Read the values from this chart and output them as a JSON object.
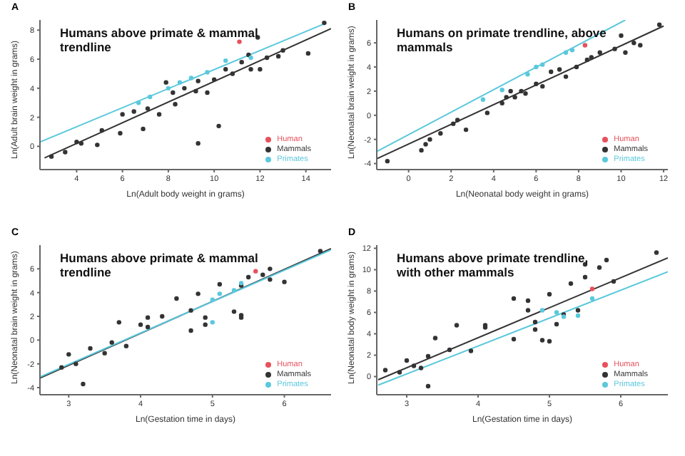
{
  "chart_data": [
    {
      "type": "scatter",
      "title": "A",
      "xlabel": "Ln(Adult body weight in grams)",
      "ylabel": "Ln(Adult brain weight in grams)",
      "annotations": [
        "Humans above primate & mammal trendline"
      ],
      "xlim": [
        2.4,
        15.1
      ],
      "ylim": [
        -1.6,
        8.7
      ],
      "xticks": [
        4,
        6,
        8,
        10,
        12,
        14
      ],
      "yticks": [
        0,
        2,
        4,
        6,
        8
      ],
      "grid": false,
      "legend": "bottom right",
      "marker": "circle",
      "series": [
        {
          "name": "Mammals",
          "color": "#333333",
          "x": [
            2.9,
            3.5,
            4.0,
            4.2,
            4.9,
            5.1,
            5.9,
            6.0,
            6.5,
            6.9,
            7.1,
            7.6,
            7.9,
            8.2,
            8.3,
            8.7,
            9.2,
            9.3,
            9.7,
            10.0,
            10.2,
            9.3,
            10.5,
            10.8,
            11.2,
            11.5,
            11.6,
            12.0,
            12.3,
            12.8,
            13.0,
            14.1,
            11.9,
            14.8
          ],
          "values": [
            -0.7,
            -0.4,
            0.3,
            0.2,
            0.1,
            1.1,
            0.9,
            2.2,
            2.4,
            1.2,
            2.6,
            2.2,
            4.4,
            3.7,
            2.9,
            4.0,
            3.8,
            4.5,
            3.7,
            4.6,
            1.4,
            0.2,
            5.3,
            5.0,
            5.8,
            6.3,
            5.3,
            5.3,
            6.1,
            6.2,
            6.6,
            6.4,
            7.5,
            8.5
          ]
        },
        {
          "name": "Primates",
          "color": "#5bc8dc",
          "x": [
            6.7,
            7.2,
            8.0,
            8.5,
            9.0,
            9.7,
            10.5,
            11.6
          ],
          "values": [
            3.0,
            3.4,
            4.0,
            4.4,
            4.7,
            5.1,
            5.9,
            6.1
          ]
        },
        {
          "name": "Human",
          "color": "#e8505b",
          "x": [
            11.1
          ],
          "values": [
            7.2
          ]
        },
        {
          "type": "line",
          "color": "#333333",
          "marker": "none",
          "x": [
            2.6,
            15.1
          ],
          "values": [
            -0.8,
            8.1
          ]
        },
        {
          "type": "line",
          "color": "#5bc8dc",
          "marker": "none",
          "x": [
            2.4,
            14.9
          ],
          "values": [
            0.3,
            8.5
          ]
        }
      ]
    },
    {
      "type": "scatter",
      "title": "B",
      "xlabel": "Ln(Neonatal body weight in grams)",
      "ylabel": "Ln(Neonatal brain weight in grams)",
      "annotations": [
        "Humans on primate trendline, above mammals"
      ],
      "xlim": [
        -1.5,
        12.2
      ],
      "ylim": [
        -4.5,
        7.9
      ],
      "xticks": [
        0,
        2,
        4,
        6,
        8,
        10,
        12
      ],
      "yticks": [
        -4,
        -2,
        0,
        2,
        4,
        6
      ],
      "grid": false,
      "legend": "bottom right",
      "marker": "circle",
      "series": [
        {
          "name": "Mammals",
          "color": "#333333",
          "x": [
            -1.0,
            0.6,
            0.8,
            1.0,
            1.5,
            2.1,
            2.3,
            2.7,
            3.7,
            4.4,
            4.6,
            4.8,
            5.0,
            5.3,
            5.5,
            6.0,
            6.3,
            6.7,
            7.1,
            7.4,
            7.9,
            8.4,
            8.6,
            9.0,
            9.7,
            10.2,
            10.6,
            10.9,
            10.0,
            11.8
          ],
          "values": [
            -3.8,
            -2.9,
            -2.4,
            -2.0,
            -1.5,
            -0.7,
            -0.4,
            -1.2,
            0.2,
            1.0,
            1.5,
            2.0,
            1.5,
            2.0,
            1.8,
            2.6,
            2.4,
            3.6,
            3.8,
            3.2,
            4.0,
            4.6,
            4.8,
            5.2,
            5.5,
            5.2,
            6.0,
            5.8,
            6.6,
            7.5
          ]
        },
        {
          "name": "Primates",
          "color": "#5bc8dc",
          "x": [
            3.5,
            4.4,
            5.6,
            6.0,
            6.3,
            7.4,
            7.7
          ],
          "values": [
            1.3,
            2.1,
            3.4,
            4.0,
            4.2,
            5.2,
            5.4
          ]
        },
        {
          "name": "Human",
          "color": "#e8505b",
          "x": [
            8.3
          ],
          "values": [
            5.8
          ]
        },
        {
          "type": "line",
          "color": "#333333",
          "marker": "none",
          "x": [
            -1.5,
            12.0
          ],
          "values": [
            -3.6,
            7.4
          ]
        },
        {
          "type": "line",
          "color": "#5bc8dc",
          "marker": "none",
          "x": [
            -1.5,
            10.2
          ],
          "values": [
            -3.0,
            7.9
          ]
        }
      ]
    },
    {
      "type": "scatter",
      "title": "C",
      "xlabel": "Ln(Gestation time in days)",
      "ylabel": "Ln(Neonatal brain weight in grams)",
      "annotations": [
        "Humans above primate & mammal trendline"
      ],
      "xlim": [
        2.6,
        6.65
      ],
      "ylim": [
        -4.6,
        8.0
      ],
      "xticks": [
        3,
        4,
        5,
        6
      ],
      "yticks": [
        -4,
        -2,
        0,
        2,
        4,
        6
      ],
      "grid": false,
      "legend": "bottom right",
      "marker": "circle",
      "series": [
        {
          "name": "Mammals",
          "color": "#333333",
          "x": [
            2.9,
            3.0,
            3.1,
            3.2,
            3.3,
            3.5,
            3.6,
            3.7,
            3.8,
            4.0,
            4.1,
            4.1,
            4.3,
            4.5,
            4.7,
            4.7,
            4.8,
            4.9,
            4.9,
            5.1,
            5.3,
            5.4,
            5.4,
            5.4,
            5.5,
            5.7,
            5.8,
            6.0,
            5.8,
            6.5
          ],
          "values": [
            -2.3,
            -1.2,
            -2.0,
            -3.7,
            -0.7,
            -1.1,
            -0.2,
            1.5,
            -0.5,
            1.3,
            1.9,
            1.1,
            2.0,
            3.5,
            0.8,
            2.5,
            3.9,
            1.9,
            1.3,
            4.7,
            2.4,
            1.9,
            2.1,
            4.6,
            5.3,
            5.5,
            5.1,
            4.9,
            6.0,
            7.5
          ]
        },
        {
          "name": "Primates",
          "color": "#5bc8dc",
          "x": [
            5.0,
            5.1,
            5.3,
            5.0,
            5.4
          ],
          "values": [
            3.4,
            3.9,
            4.2,
            1.5,
            4.8
          ]
        },
        {
          "name": "Human",
          "color": "#e8505b",
          "x": [
            5.6
          ],
          "values": [
            5.8
          ]
        },
        {
          "type": "line",
          "color": "#333333",
          "marker": "none",
          "x": [
            2.6,
            6.65
          ],
          "values": [
            -3.2,
            7.7
          ]
        },
        {
          "type": "line",
          "color": "#5bc8dc",
          "marker": "none",
          "x": [
            2.6,
            6.65
          ],
          "values": [
            -3.1,
            7.6
          ]
        }
      ]
    },
    {
      "type": "scatter",
      "title": "D",
      "xlabel": "Ln(Gestation time in days)",
      "ylabel": "Ln(Neonatal body weight in grams)",
      "annotations": [
        "Humans above primate trendline, with other mammals"
      ],
      "xlim": [
        2.58,
        6.66
      ],
      "ylim": [
        -1.7,
        12.3
      ],
      "xticks": [
        3,
        4,
        5,
        6
      ],
      "yticks": [
        0,
        2,
        4,
        6,
        8,
        10,
        12
      ],
      "grid": false,
      "legend": "bottom right",
      "marker": "circle",
      "series": [
        {
          "name": "Mammals",
          "color": "#333333",
          "x": [
            2.7,
            2.9,
            3.0,
            3.1,
            3.2,
            3.3,
            3.3,
            3.4,
            3.6,
            3.7,
            3.9,
            4.1,
            4.1,
            4.5,
            4.5,
            4.7,
            4.7,
            4.8,
            4.8,
            4.9,
            5.0,
            5.0,
            5.1,
            5.2,
            5.3,
            5.4,
            5.5,
            5.5,
            5.7,
            5.8,
            5.9,
            6.5
          ],
          "values": [
            0.6,
            0.4,
            1.5,
            1.0,
            0.8,
            -0.9,
            1.9,
            3.6,
            2.5,
            4.8,
            2.4,
            4.6,
            4.8,
            7.3,
            3.5,
            7.1,
            6.2,
            5.1,
            4.4,
            3.4,
            3.3,
            7.7,
            4.9,
            5.8,
            8.7,
            6.2,
            10.5,
            9.3,
            10.2,
            10.9,
            8.9,
            11.6
          ]
        },
        {
          "name": "Primates",
          "color": "#5bc8dc",
          "x": [
            4.9,
            5.1,
            5.2,
            5.4,
            5.6
          ],
          "values": [
            6.2,
            6.0,
            5.6,
            5.7,
            7.3
          ]
        },
        {
          "name": "Human",
          "color": "#e8505b",
          "x": [
            5.6
          ],
          "values": [
            8.2
          ]
        },
        {
          "type": "line",
          "color": "#333333",
          "marker": "none",
          "x": [
            2.6,
            6.66
          ],
          "values": [
            -0.3,
            11.1
          ]
        },
        {
          "type": "line",
          "color": "#5bc8dc",
          "marker": "none",
          "x": [
            2.6,
            6.66
          ],
          "values": [
            -0.8,
            9.8
          ]
        }
      ]
    }
  ]
}
